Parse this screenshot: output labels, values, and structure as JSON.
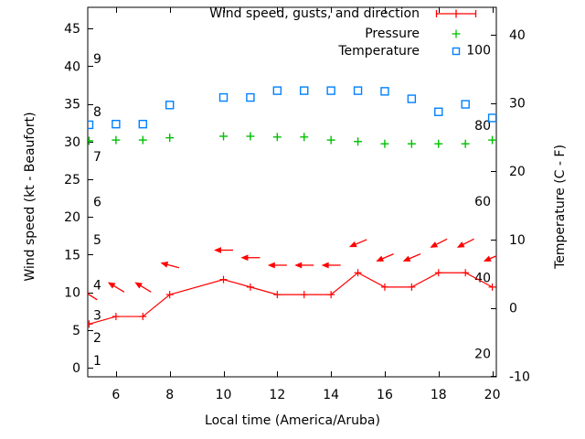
{
  "chart_data": {
    "type": "line",
    "title": "",
    "xlabel": "Local time (America/Aruba)",
    "ylabel_left": "Wind speed (kt - Beaufort)",
    "ylabel_right": "Temperature (C - F)",
    "grid": false,
    "x_range": [
      4.95,
      20.15
    ],
    "x_ticks": [
      6,
      8,
      10,
      12,
      14,
      16,
      18,
      20
    ],
    "left_axis_range": [
      -1.2,
      47.8
    ],
    "left_ticks": [
      0,
      5,
      10,
      15,
      20,
      25,
      30,
      35,
      40,
      45
    ],
    "right_axis_range": [
      -10.1,
      44.0
    ],
    "right_ticks": [
      -10,
      0,
      10,
      20,
      30,
      40
    ],
    "beaufort_labels": [
      [
        1,
        1
      ],
      [
        2,
        4
      ],
      [
        3,
        7
      ],
      [
        4,
        11
      ],
      [
        5,
        17
      ],
      [
        6,
        22
      ],
      [
        7,
        28
      ],
      [
        8,
        34
      ],
      [
        9,
        41
      ]
    ],
    "fahrenheit_labels": [
      [
        100,
        37.8
      ],
      [
        80,
        26.7
      ],
      [
        60,
        15.6
      ],
      [
        40,
        4.4
      ],
      [
        20,
        -6.7
      ]
    ],
    "hours": [
      5,
      6,
      7,
      8,
      9,
      10,
      11,
      12,
      13,
      14,
      15,
      16,
      17,
      18,
      19,
      20
    ],
    "series": [
      {
        "name": "Wind speed",
        "type": "line-cross",
        "axis": "left",
        "color": "#ff0000",
        "values": [
          5.8,
          6.8,
          6.8,
          9.7,
          null,
          11.7,
          10.7,
          9.7,
          9.7,
          9.7,
          12.6,
          10.7,
          10.7,
          12.6,
          12.6,
          10.7
        ]
      },
      {
        "name": "Wind gusts and direction",
        "type": "arrows",
        "axis": "left",
        "color": "#ff0000",
        "values": [
          9.7,
          10.7,
          10.7,
          13.6,
          null,
          15.6,
          14.6,
          13.6,
          13.6,
          13.6,
          16.5,
          14.6,
          14.6,
          16.5,
          16.5,
          14.6
        ],
        "angles_deg_up_from_west": [
          33,
          31,
          31,
          15,
          null,
          0,
          0,
          0,
          0,
          0,
          -23,
          -23,
          -23,
          -27,
          -27,
          -23
        ]
      },
      {
        "name": "Pressure",
        "type": "plus",
        "axis": "left",
        "color": "#00c000",
        "values": [
          30.1,
          30.2,
          30.2,
          30.5,
          null,
          30.7,
          30.7,
          30.6,
          30.6,
          30.2,
          30.0,
          29.7,
          29.7,
          29.7,
          29.7,
          30.2
        ]
      },
      {
        "name": "Temperature",
        "type": "open-square",
        "axis": "right",
        "color": "#0080ff",
        "values": [
          26.8,
          26.9,
          26.9,
          29.7,
          null,
          30.8,
          30.8,
          31.8,
          31.8,
          31.8,
          31.8,
          31.7,
          30.6,
          28.7,
          29.8,
          27.8
        ]
      }
    ],
    "legend": {
      "position": "top-right-inside",
      "entries": [
        {
          "label": "Wind speed, gusts, and direction",
          "marker": "line-with-cross",
          "color": "#ff0000"
        },
        {
          "label": "Pressure",
          "marker": "plus",
          "color": "#00c000"
        },
        {
          "label": "Temperature",
          "marker": "open-square",
          "color": "#0080ff"
        }
      ]
    }
  },
  "colors": {
    "background": "#ffffff",
    "axis": "#000000",
    "wind": "#ff0000",
    "pressure": "#00c000",
    "temperature": "#0080ff"
  }
}
